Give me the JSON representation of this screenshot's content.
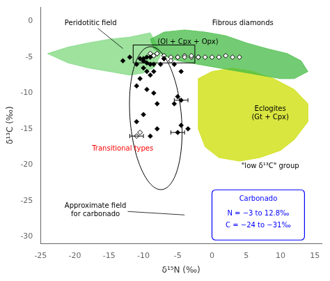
{
  "chart_data": {
    "type": "scatter",
    "x_label": "δ¹⁵N (‰)",
    "y_label": "δ¹³C (‰)",
    "xlim": [
      -25,
      16
    ],
    "ylim": [
      -31,
      2
    ],
    "xticks": [
      -25,
      -20,
      -15,
      -10,
      -5,
      0,
      5,
      10,
      15
    ],
    "yticks": [
      0,
      -5,
      -10,
      -15,
      -20,
      -25,
      -30
    ],
    "grid": false,
    "series": [
      {
        "marker": "diamond",
        "color": "#000000",
        "x": [
          -10.5,
          -10,
          -9.5,
          -9,
          -11,
          -10,
          -9.5,
          -9,
          -8.5,
          -10.5,
          -11,
          -9.5,
          -8.5,
          -8,
          -10,
          -11,
          -8,
          -9,
          -9.5,
          -10,
          -5,
          -4.5,
          -5.5,
          -4.5,
          -3.5,
          -5,
          -5.5,
          -4.5,
          -9,
          -10,
          -8.5,
          -7,
          -7.5,
          -12,
          -13
        ],
        "y": [
          -5.2,
          -5.5,
          -5.8,
          -6.0,
          -6.0,
          -6.5,
          -7.0,
          -7.5,
          -7.0,
          -8.0,
          -9.0,
          -9.5,
          -10.0,
          -11.5,
          -13.0,
          -14.0,
          -15.0,
          -16.0,
          -5.0,
          -5.2,
          -10.5,
          -11.0,
          -11.5,
          -14.5,
          -15.0,
          -15.5,
          -6.0,
          -7.0,
          -5.0,
          -5.5,
          -6.0,
          -5.2,
          -6.0,
          -5.0,
          -5.5
        ]
      },
      {
        "marker": "open_diamond",
        "color": "#000000",
        "x": [
          -9,
          -8,
          -7,
          -6,
          -5,
          -4,
          -3,
          -2,
          -1,
          0,
          1,
          2,
          3,
          4,
          -8.5,
          -7,
          -6,
          -5,
          -4,
          -3,
          -2,
          -11,
          -10.5
        ],
        "y": [
          -4.5,
          -4.5,
          -4.8,
          -5.0,
          -5.0,
          -4.8,
          -5.0,
          -5.0,
          -5.0,
          -5.0,
          -5.0,
          -4.8,
          -5.0,
          -5.0,
          -4.8,
          -5.2,
          -5.5,
          -5.0,
          -5.0,
          -4.8,
          -5.0,
          -16.0,
          -15.5
        ]
      }
    ],
    "errorbars": [
      {
        "x": -4.5,
        "y": -11.0,
        "xerr": 1.0
      },
      {
        "x": -5.0,
        "y": -15.5,
        "xerr": 1.0
      },
      {
        "x": -11.0,
        "y": -16.0,
        "xerr": 1.0
      }
    ],
    "fields": [
      {
        "color": "#7dd87d",
        "x": [
          -24,
          -21,
          -18,
          -15,
          -12,
          -10,
          -9,
          -8.5,
          -8,
          -7.5,
          -8.5,
          -10,
          -12,
          -15,
          -18,
          -21,
          -24
        ],
        "y": [
          -4.5,
          -3.6,
          -3.0,
          -2.5,
          -2.2,
          -1.8,
          -1.6,
          -2.5,
          -3.5,
          -4.8,
          -6.5,
          -7.2,
          -7.5,
          -7.0,
          -6.5,
          -5.8,
          -4.5
        ]
      },
      {
        "color": "#ccdd00",
        "x": [
          -2,
          0,
          3,
          6,
          9,
          12,
          14,
          14,
          12,
          10,
          7,
          4,
          1,
          -1,
          -2,
          -2
        ],
        "y": [
          -8.0,
          -7.0,
          -6.5,
          -7.0,
          -8.0,
          -9.5,
          -11.5,
          -14.0,
          -16.5,
          -18.0,
          -19.0,
          -19.5,
          -19.0,
          -17.5,
          -15.0,
          -8.0
        ]
      },
      {
        "color": "#44bb44",
        "x": [
          -9,
          -7,
          -4,
          -1,
          2,
          5,
          8,
          11,
          13,
          14,
          12,
          10,
          7,
          4,
          1,
          -2,
          -5,
          -7,
          -8.5,
          -9
        ],
        "y": [
          -2.5,
          -1.5,
          -1.2,
          -1.5,
          -2.0,
          -3.0,
          -3.8,
          -4.5,
          -5.5,
          -7.0,
          -8.0,
          -8.0,
          -7.5,
          -7.0,
          -6.5,
          -6.0,
          -5.5,
          -4.8,
          -3.8,
          -2.5
        ]
      }
    ],
    "rectangle": {
      "x": -11.5,
      "y": -5.8,
      "width": 9.0,
      "height": 2.5
    },
    "ellipse": {
      "x": -8.2,
      "y": -13.5,
      "width": 7.5,
      "height": 20.0,
      "angle": 5
    },
    "box": {
      "x": [
        0.0,
        13.5
      ],
      "y": [
        -30.5,
        -23.5
      ],
      "color": "blue",
      "texts": [
        {
          "text": "Carbonado",
          "x": 6.75,
          "y": -24.8
        },
        {
          "text": "N = −3 to 12.8‰",
          "x": 6.75,
          "y": -26.8
        },
        {
          "text": "C = −24 to −31‰",
          "x": 6.75,
          "y": -28.5
        }
      ]
    },
    "annotations": [
      {
        "text": "Peridotitic field",
        "x": -21.5,
        "y": -0.5,
        "align": "left",
        "arrow_to": [
          -13,
          -3.8
        ]
      },
      {
        "text": "Fibrous diamonds",
        "x": 4.5,
        "y": -0.5,
        "align": "center"
      },
      {
        "text": "(Ol + Cpx + Opx)",
        "x": -3.5,
        "y": -3.2,
        "align": "center"
      },
      {
        "text": "Eclogites\n(Gt + Cpx)",
        "x": 8.5,
        "y": -12.5,
        "align": "center"
      },
      {
        "text": "\"low δ¹³C\" group",
        "x": 8.5,
        "y": -20.5,
        "align": "center"
      },
      {
        "text": "Transitional types",
        "x": -17.5,
        "y": -18.0,
        "align": "left",
        "color": "red"
      },
      {
        "text": "Approximate field\nfor carbonado",
        "x": -17.0,
        "y": -26.0,
        "align": "center",
        "arrow_to": [
          -4.0,
          -27.0
        ]
      }
    ]
  }
}
